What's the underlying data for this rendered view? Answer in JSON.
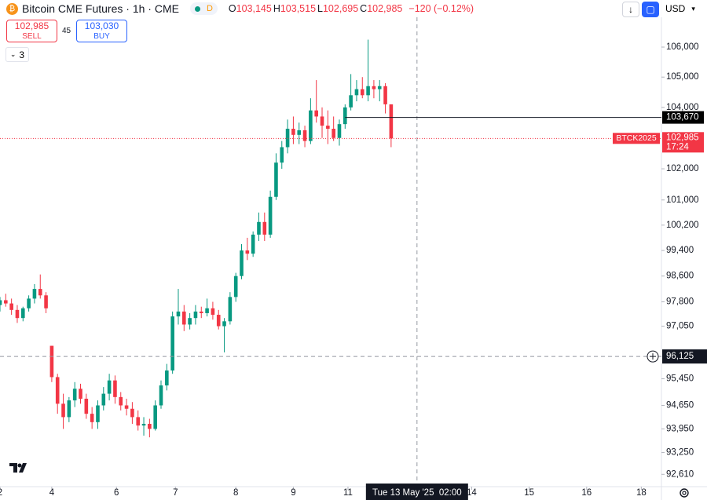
{
  "header": {
    "title": "Bitcoin CME Futures · 1h · CME",
    "badge": "D",
    "ohlc": [
      {
        "key": "O",
        "value": "103,145"
      },
      {
        "key": "H",
        "value": "103,515"
      },
      {
        "key": "L",
        "value": "102,695"
      },
      {
        "key": "C",
        "value": "102,985"
      }
    ],
    "change": "−120 (−0.12%)",
    "currency": "USD"
  },
  "trade": {
    "sell_price": "102,985",
    "sell_label": "SELL",
    "spread": "45",
    "buy_price": "103,030",
    "buy_label": "BUY"
  },
  "indicators_count": "3",
  "chart_data": {
    "type": "candlestick",
    "log_scale": true,
    "up_color": "#089981",
    "down_color": "#f23645",
    "x": [
      0,
      2,
      4,
      6,
      8,
      10,
      12,
      14,
      16,
      18,
      20,
      22,
      24,
      26,
      28,
      30,
      32,
      34,
      36,
      38,
      40,
      42,
      44,
      46,
      48,
      50,
      52,
      54,
      56,
      58,
      60,
      62,
      64,
      66,
      68,
      70,
      72,
      74,
      76,
      78,
      80,
      82,
      84,
      86,
      88,
      90,
      92,
      94,
      96,
      98,
      100,
      102,
      104,
      106,
      108,
      110,
      112,
      114,
      116,
      118,
      120,
      122,
      124,
      126,
      128,
      130,
      132,
      134,
      136
    ],
    "open": [
      97700,
      97850,
      97750,
      97550,
      97300,
      97600,
      97900,
      98200,
      98000,
      96450,
      95500,
      94700,
      94300,
      94800,
      95150,
      94850,
      94400,
      94150,
      94650,
      95000,
      95400,
      94900,
      94650,
      94550,
      94300,
      94050,
      94100,
      93950,
      94650,
      95250,
      95700,
      97350,
      97500,
      97100,
      97300,
      97500,
      97450,
      97600,
      97400,
      97050,
      97200,
      97950,
      98600,
      99400,
      99300,
      99900,
      100300,
      99900,
      101100,
      102200,
      102700,
      103300,
      103100,
      103250,
      102900,
      103900,
      103700,
      103400,
      103300,
      103000,
      103450,
      104000,
      104400,
      104600,
      104400,
      104700,
      104600,
      104700,
      104100
    ],
    "high": [
      97950,
      98050,
      97900,
      97700,
      97650,
      98000,
      98350,
      98650,
      98100,
      96450,
      95600,
      95000,
      94900,
      95350,
      95300,
      95000,
      94600,
      94800,
      95200,
      95600,
      95550,
      95050,
      94850,
      94750,
      94500,
      94300,
      94250,
      94800,
      95400,
      95900,
      97500,
      98200,
      97700,
      97450,
      97700,
      97650,
      97900,
      97800,
      97550,
      97300,
      98100,
      98700,
      99600,
      99800,
      100000,
      100600,
      100600,
      101300,
      102500,
      102900,
      103600,
      103700,
      103500,
      103400,
      104300,
      104900,
      104000,
      103900,
      103700,
      103600,
      104100,
      105100,
      104900,
      105000,
      106250,
      104900,
      104900,
      104800,
      104100
    ],
    "low": [
      97500,
      97650,
      97400,
      97150,
      97200,
      97500,
      97750,
      97900,
      97450,
      95350,
      94400,
      93950,
      94150,
      94600,
      94700,
      94250,
      93950,
      93950,
      94500,
      94800,
      94700,
      94500,
      94350,
      94100,
      93900,
      93750,
      93700,
      93900,
      94550,
      95100,
      95600,
      97100,
      96900,
      96950,
      97100,
      97300,
      97350,
      97250,
      96950,
      96250,
      97100,
      97800,
      98500,
      99100,
      99200,
      99700,
      99700,
      99800,
      101000,
      102000,
      102500,
      102800,
      102800,
      102700,
      102800,
      103500,
      103000,
      102800,
      102900,
      102750,
      103300,
      103900,
      104200,
      104300,
      104200,
      104300,
      104200,
      103800,
      102700
    ],
    "close": [
      97850,
      97750,
      97550,
      97300,
      97600,
      97900,
      98200,
      98000,
      97600,
      95500,
      94700,
      94300,
      94800,
      95150,
      94850,
      94400,
      94150,
      94650,
      95000,
      95400,
      94900,
      94650,
      94550,
      94300,
      94050,
      94100,
      93950,
      94650,
      95250,
      95700,
      97350,
      97500,
      97100,
      97300,
      97500,
      97450,
      97600,
      97400,
      97050,
      97200,
      97950,
      98600,
      99400,
      99300,
      99900,
      100300,
      99900,
      101100,
      102200,
      102700,
      103300,
      103100,
      103250,
      102900,
      103900,
      103700,
      103400,
      103300,
      103000,
      103450,
      104000,
      104400,
      104600,
      104400,
      104700,
      104600,
      104700,
      104100,
      102985
    ],
    "xlim": [
      0,
      230
    ],
    "xticks": [
      {
        "value": 0,
        "label": "2"
      },
      {
        "value": 18,
        "label": "4"
      },
      {
        "value": 40.5,
        "label": "6"
      },
      {
        "value": 61,
        "label": "7"
      },
      {
        "value": 82,
        "label": "8"
      },
      {
        "value": 102,
        "label": "9"
      },
      {
        "value": 121,
        "label": "11"
      },
      {
        "value": 164,
        "label": "14"
      },
      {
        "value": 184,
        "label": "15"
      },
      {
        "value": 204,
        "label": "16"
      },
      {
        "value": 223,
        "label": "18"
      }
    ],
    "ylim": [
      92250,
      107590
    ],
    "yticks": [
      {
        "value": 106000,
        "label": "106,000"
      },
      {
        "value": 105000,
        "label": "105,000"
      },
      {
        "value": 104000,
        "label": "104,000"
      },
      {
        "value": 102000,
        "label": "102,000"
      },
      {
        "value": 101000,
        "label": "101,000"
      },
      {
        "value": 100200,
        "label": "100,200"
      },
      {
        "value": 99400,
        "label": "99,400"
      },
      {
        "value": 98600,
        "label": "98,600"
      },
      {
        "value": 97800,
        "label": "97,800"
      },
      {
        "value": 97050,
        "label": "97,050"
      },
      {
        "value": 95450,
        "label": "95,450"
      },
      {
        "value": 94650,
        "label": "94,650"
      },
      {
        "value": 93950,
        "label": "93,950"
      },
      {
        "value": 93250,
        "label": "93,250"
      },
      {
        "value": 92610,
        "label": "92,610"
      }
    ],
    "last_price": {
      "value": 102985,
      "label": "102,985",
      "symbol": "BTCK2025",
      "countdown": "17:24"
    },
    "alert_line": {
      "value": 103670,
      "label": "103,670"
    },
    "crosshair": {
      "x": 145,
      "x_label": "Tue 13 May '25  02:00",
      "y": 96125,
      "y_label": "96,125"
    }
  }
}
